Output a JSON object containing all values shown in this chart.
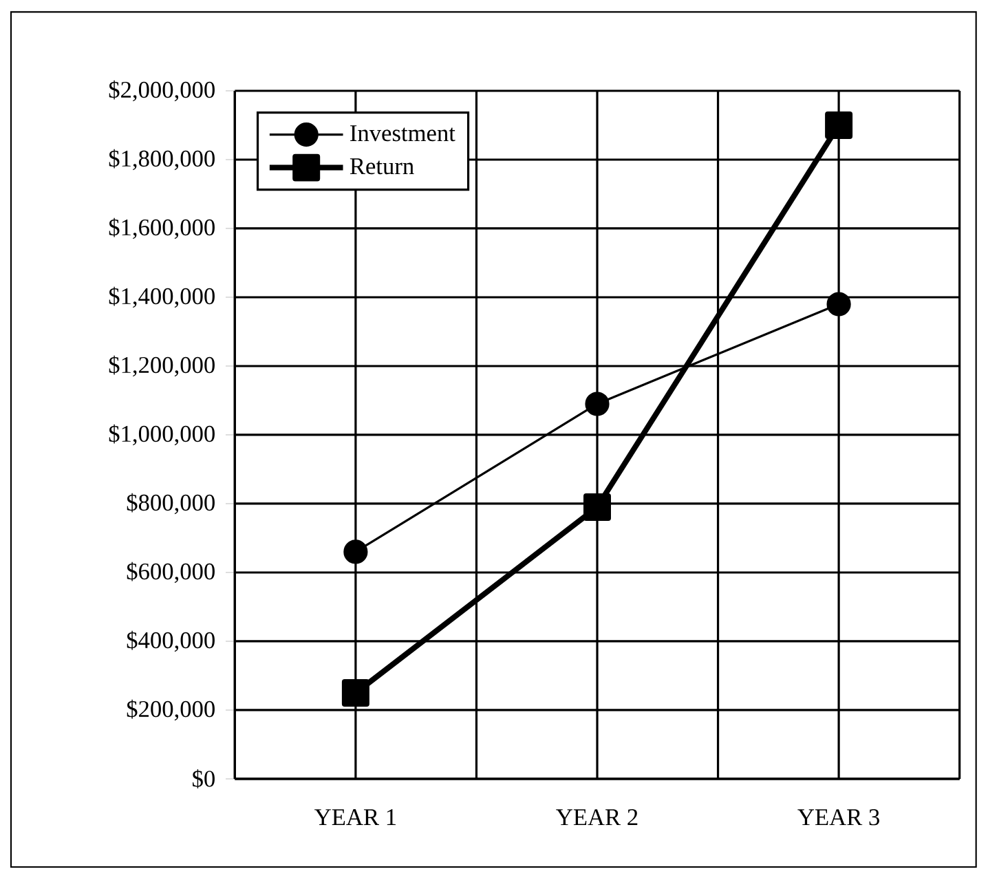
{
  "chart_data": {
    "type": "line",
    "categories": [
      "YEAR 1",
      "YEAR 2",
      "YEAR 3"
    ],
    "series": [
      {
        "name": "Investment",
        "color": "#000000",
        "marker": "circle",
        "values": [
          660000,
          1090000,
          1380000
        ]
      },
      {
        "name": "Return",
        "color": "#000000",
        "marker": "square",
        "values": [
          250000,
          790000,
          1900000
        ]
      }
    ],
    "ylim": [
      0,
      2000000
    ],
    "yticks": [
      {
        "value": 0,
        "label": "$0"
      },
      {
        "value": 200000,
        "label": "$200,000"
      },
      {
        "value": 400000,
        "label": "$400,000"
      },
      {
        "value": 600000,
        "label": "$600,000"
      },
      {
        "value": 800000,
        "label": "$800,000"
      },
      {
        "value": 1000000,
        "label": "$1,000,000"
      },
      {
        "value": 1200000,
        "label": "$1,200,000"
      },
      {
        "value": 1400000,
        "label": "$1,400,000"
      },
      {
        "value": 1600000,
        "label": "$1,600,000"
      },
      {
        "value": 1800000,
        "label": "$1,800,000"
      },
      {
        "value": 2000000,
        "label": "$2,000,000"
      }
    ],
    "grid": true,
    "legend": "top left",
    "line_style": "solid"
  }
}
